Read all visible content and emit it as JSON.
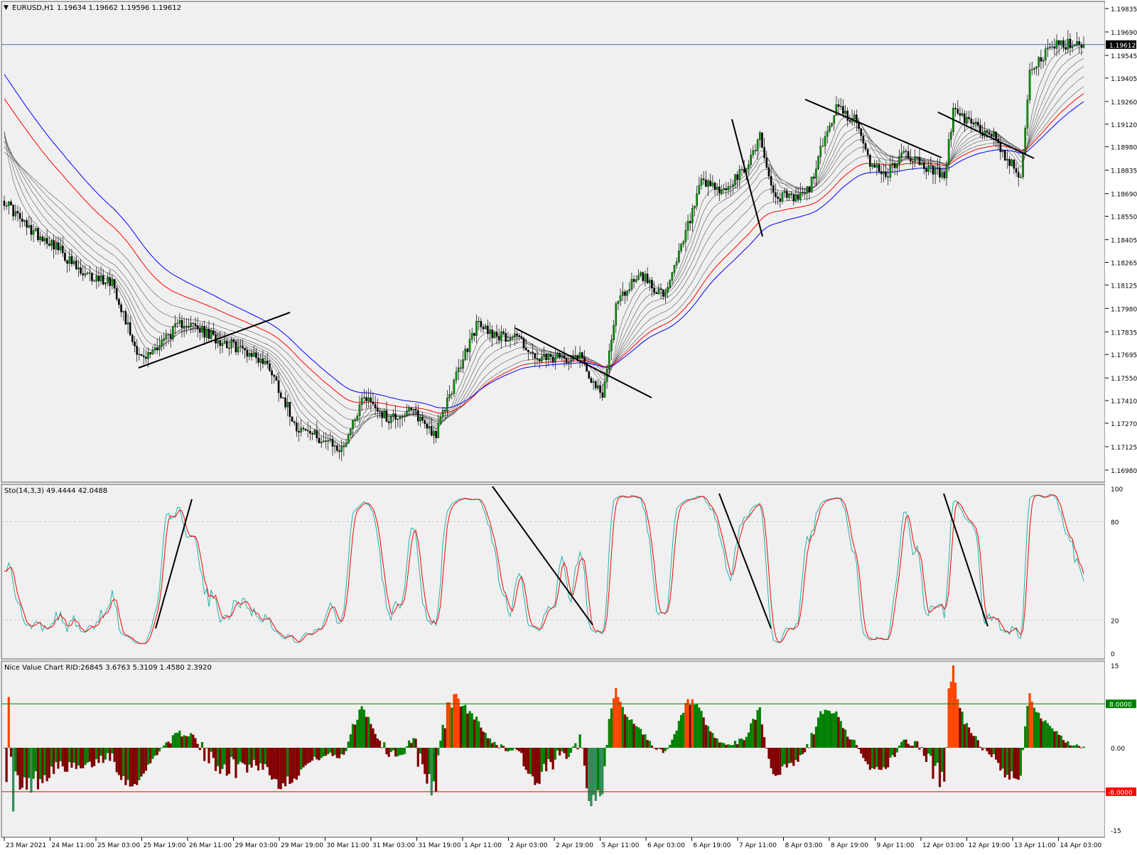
{
  "main_panel": {
    "symbol_label": "EURUSD,H1",
    "ohlc_text": "1.19634 1.19662 1.19596 1.19612",
    "price_ticks": [
      "1.19835",
      "1.19690",
      "1.19545",
      "1.19405",
      "1.19260",
      "1.19120",
      "1.18980",
      "1.18835",
      "1.18690",
      "1.18550",
      "1.18405",
      "1.18265",
      "1.18125",
      "1.17980",
      "1.17835",
      "1.17695",
      "1.17550",
      "1.17410",
      "1.17270",
      "1.17125",
      "1.16980"
    ],
    "current_price_label": "1.19612",
    "colors": {
      "background": "#f0f0f0",
      "bull": "#00a000",
      "bear": "#000000",
      "ema_red": "#ff0000",
      "ema_blue": "#0000ff",
      "ribbon": "#555555",
      "price_line": "#1c3e9c",
      "trendline": "#000000"
    }
  },
  "stoch_panel": {
    "label": "Sto(14,3,3) 49.4444 42.0488",
    "ticks": [
      "100",
      "80",
      "20",
      "0"
    ],
    "colors": {
      "main": "#20b2aa",
      "signal": "#ff0000",
      "levels": "#c0c0c0"
    }
  },
  "nvc_panel": {
    "label": "Nice Value Chart RID:26845 3.6763 5.3109 1.4580 2.3920",
    "ticks": [
      "15",
      "0.00",
      "-15"
    ],
    "upper_level_label": "8.0000",
    "lower_level_label": "-8.0000",
    "colors": {
      "over_top": "#ff4500",
      "over_bottom": "#2e8b57",
      "up": "#008000",
      "down": "#800000",
      "upper_line": "#008000",
      "lower_line": "#ff0000"
    }
  },
  "time_axis": {
    "labels": [
      "23 Mar 2021",
      "24 Mar 11:00",
      "25 Mar 03:00",
      "25 Mar 19:00",
      "26 Mar 11:00",
      "29 Mar 03:00",
      "29 Mar 19:00",
      "30 Mar 11:00",
      "31 Mar 03:00",
      "31 Mar 19:00",
      "1 Apr 11:00",
      "2 Apr 03:00",
      "2 Apr 19:00",
      "5 Apr 11:00",
      "6 Apr 03:00",
      "6 Apr 19:00",
      "7 Apr 11:00",
      "8 Apr 03:00",
      "8 Apr 19:00",
      "9 Apr 11:00",
      "12 Apr 03:00",
      "12 Apr 19:00",
      "13 Apr 11:00",
      "14 Apr 03:00"
    ]
  },
  "chart_data": [
    {
      "type": "candlestick",
      "title": "EURUSD,H1",
      "ylim": [
        1.1698,
        1.199
      ],
      "close_path_anchors": [
        [
          0,
          1.1865
        ],
        [
          10,
          1.1848
        ],
        [
          22,
          1.1838
        ],
        [
          35,
          1.1818
        ],
        [
          48,
          1.1815
        ],
        [
          58,
          1.1775
        ],
        [
          62,
          1.1766
        ],
        [
          70,
          1.1778
        ],
        [
          80,
          1.179
        ],
        [
          90,
          1.1782
        ],
        [
          100,
          1.1776
        ],
        [
          110,
          1.177
        ],
        [
          118,
          1.1762
        ],
        [
          122,
          1.1749
        ],
        [
          130,
          1.1725
        ],
        [
          140,
          1.1718
        ],
        [
          150,
          1.171
        ],
        [
          160,
          1.1745
        ],
        [
          170,
          1.173
        ],
        [
          182,
          1.1734
        ],
        [
          192,
          1.172
        ],
        [
          198,
          1.1745
        ],
        [
          210,
          1.1788
        ],
        [
          222,
          1.178
        ],
        [
          228,
          1.1782
        ],
        [
          236,
          1.1766
        ],
        [
          248,
          1.1767
        ],
        [
          256,
          1.177
        ],
        [
          262,
          1.1752
        ],
        [
          266,
          1.1742
        ],
        [
          272,
          1.18
        ],
        [
          282,
          1.182
        ],
        [
          294,
          1.1805
        ],
        [
          302,
          1.184
        ],
        [
          310,
          1.1875
        ],
        [
          320,
          1.187
        ],
        [
          330,
          1.1885
        ],
        [
          336,
          1.1905
        ],
        [
          342,
          1.1868
        ],
        [
          352,
          1.1866
        ],
        [
          358,
          1.1872
        ],
        [
          364,
          1.19
        ],
        [
          370,
          1.1922
        ],
        [
          378,
          1.1915
        ],
        [
          384,
          1.189
        ],
        [
          392,
          1.188
        ],
        [
          400,
          1.1895
        ],
        [
          410,
          1.1885
        ],
        [
          418,
          1.188
        ],
        [
          422,
          1.192
        ],
        [
          432,
          1.191
        ],
        [
          440,
          1.1905
        ],
        [
          446,
          1.189
        ],
        [
          452,
          1.188
        ],
        [
          456,
          1.1945
        ],
        [
          466,
          1.196
        ],
        [
          478,
          1.1962
        ],
        [
          480,
          1.1961
        ]
      ],
      "series": [
        {
          "name": "current_price",
          "values": [
            1.19612
          ]
        }
      ]
    },
    {
      "type": "line",
      "title": "Sto(14,3,3)",
      "ylim": [
        0,
        100
      ],
      "levels": [
        20,
        80
      ],
      "last_values": {
        "main": 49.4444,
        "signal": 42.0488
      }
    },
    {
      "type": "bar",
      "title": "Nice Value Chart",
      "ylim": [
        -15,
        15
      ],
      "levels": [
        8,
        -8
      ],
      "last_values": [
        3.6763,
        5.3109,
        1.458,
        2.392
      ]
    }
  ]
}
